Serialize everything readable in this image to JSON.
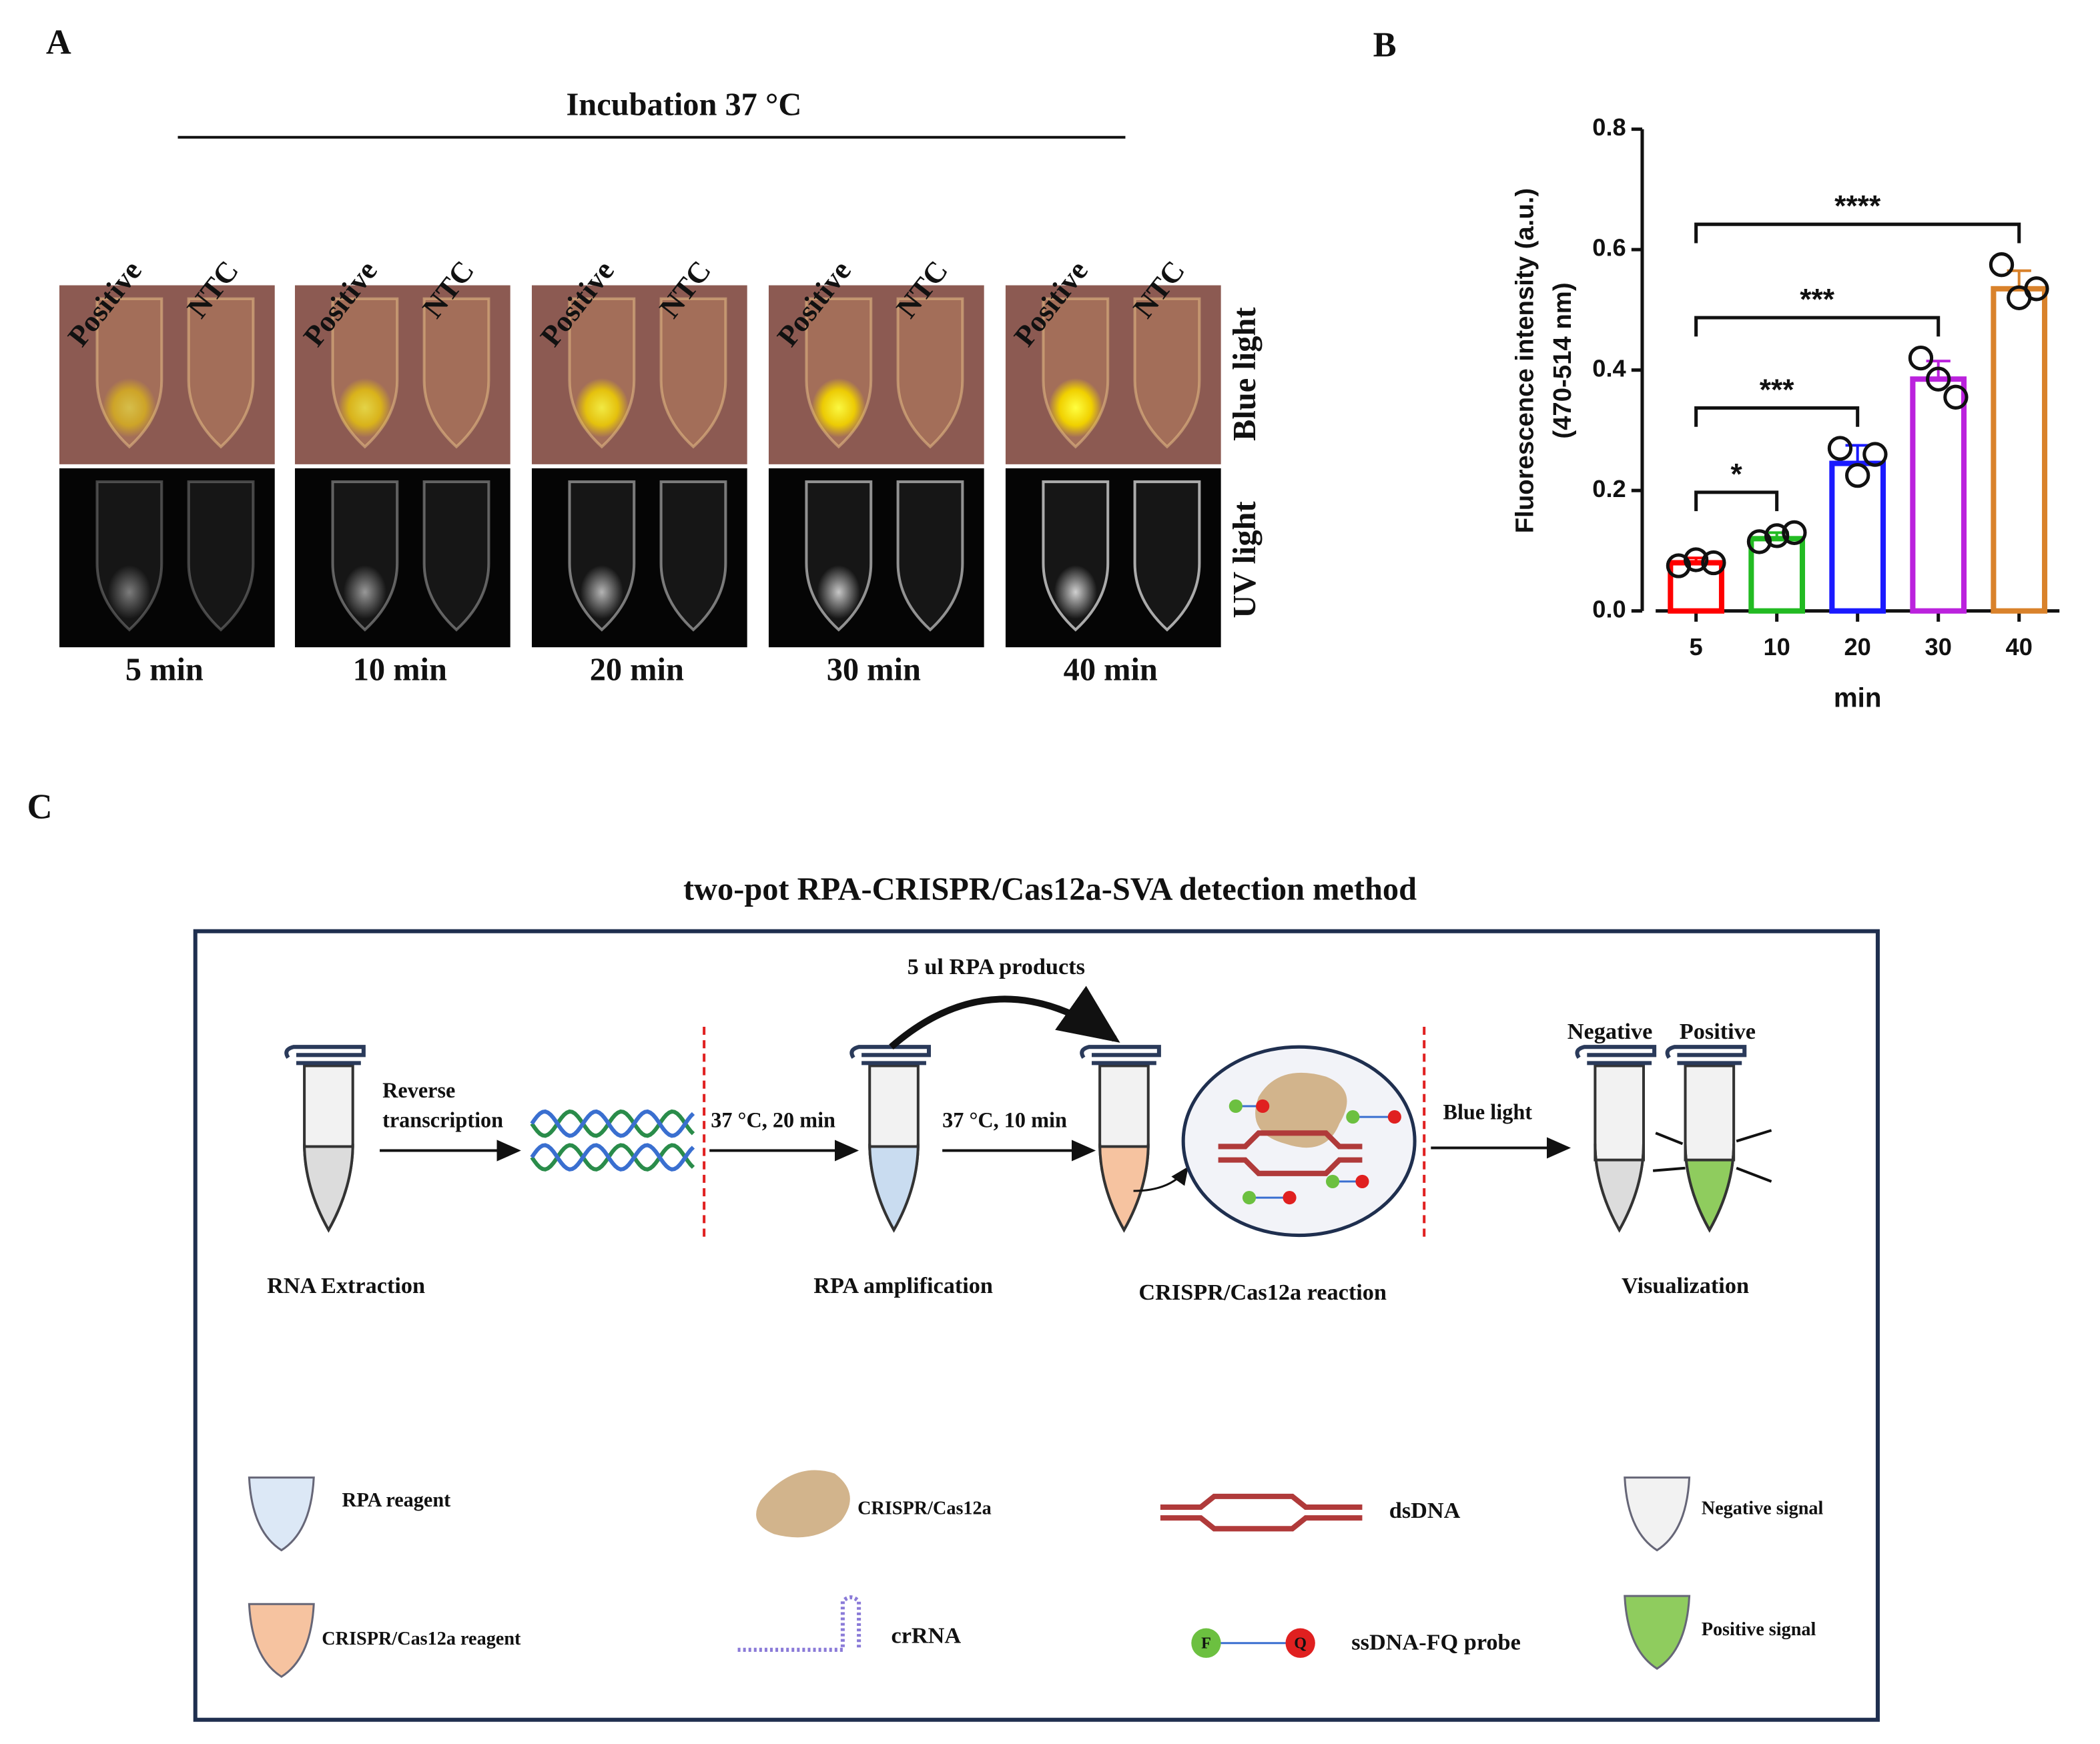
{
  "panel_a": {
    "label": "A",
    "header": "Incubation 37 °C",
    "lanes": [
      "Positive",
      "NTC"
    ],
    "light_labels": [
      "Blue light",
      "UV light"
    ],
    "times": [
      "5 min",
      "10 min",
      "20 min",
      "30 min",
      "40 min"
    ]
  },
  "chart_data": {
    "type": "bar",
    "label": "B",
    "categories": [
      "5",
      "10",
      "20",
      "30",
      "40"
    ],
    "values": [
      0.08,
      0.12,
      0.245,
      0.385,
      0.535
    ],
    "errors": [
      0.008,
      0.01,
      0.03,
      0.03,
      0.03
    ],
    "points": [
      [
        0.075,
        0.085,
        0.08
      ],
      [
        0.115,
        0.125,
        0.13
      ],
      [
        0.27,
        0.225,
        0.26
      ],
      [
        0.42,
        0.385,
        0.355
      ],
      [
        0.575,
        0.52,
        0.535
      ]
    ],
    "colors": [
      "#ff0000",
      "#22bb22",
      "#1a1aff",
      "#bb22dd",
      "#d9822b"
    ],
    "x_label": "min",
    "y_label": [
      "Fluorescence intensity (a.u.)",
      "(470-514 nm)"
    ],
    "ylim": [
      0,
      0.8
    ],
    "yticks": [
      {
        "value": 0,
        "label": "0.0"
      },
      0.2,
      0.4,
      0.6,
      0.8
    ],
    "annotations": [
      "*",
      "***",
      "***",
      "****"
    ]
  },
  "panel_c": {
    "label": "C",
    "title": "two-pot RPA-CRISPR/Cas12a-SVA detection method",
    "transfer": "5 ul RPA products",
    "step1": [
      "Reverse",
      "transcription"
    ],
    "conditions": [
      "37 °C, 20 min",
      "37 °C, 10 min",
      "Blue light"
    ],
    "stages": [
      "RNA Extraction",
      "RPA amplification",
      "CRISPR/Cas12a reaction",
      "Visualization"
    ],
    "results": [
      "Negative",
      "Positive"
    ],
    "legend": [
      "RPA reagent",
      "CRISPR/Cas12a",
      "dsDNA",
      "Negative signal",
      "CRISPR/Cas12a reagent",
      "crRNA",
      "ssDNA-FQ probe",
      "Positive signal"
    ],
    "probe": [
      "F",
      "Q"
    ]
  }
}
